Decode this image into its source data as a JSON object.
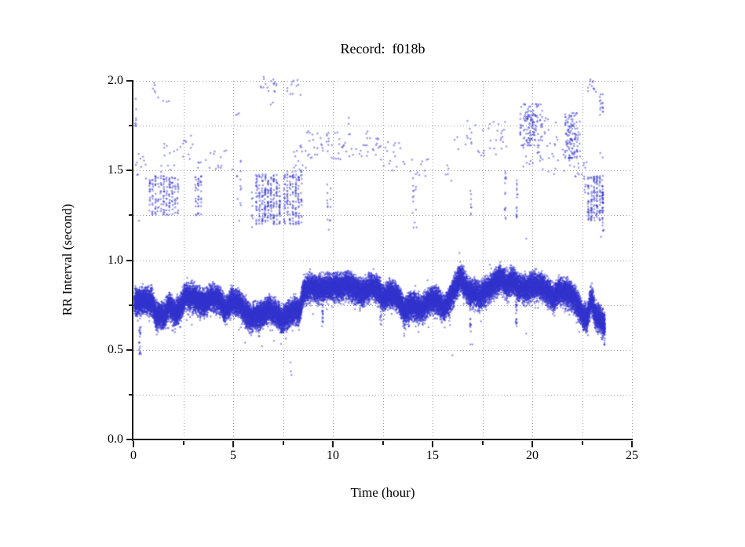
{
  "figure": {
    "record_id": "f018b",
    "background": "#ffffff"
  },
  "chart_data": {
    "type": "scatter",
    "title": "Record:  f018b",
    "xlabel": "Time (hour)",
    "ylabel": "RR Interval (second)",
    "xlim": [
      0,
      25
    ],
    "ylim": [
      0.0,
      2.0
    ],
    "x_ticks": {
      "major": [
        {
          "v": 0,
          "label": "0"
        },
        {
          "v": 5,
          "label": "5"
        },
        {
          "v": 10,
          "label": "10"
        },
        {
          "v": 15,
          "label": "15"
        },
        {
          "v": 20,
          "label": "20"
        },
        {
          "v": 25,
          "label": "25"
        }
      ],
      "minor": [
        2.5,
        7.5,
        12.5,
        17.5,
        22.5
      ]
    },
    "y_ticks": {
      "major": [
        {
          "v": 0.0,
          "label": "0.0"
        },
        {
          "v": 0.5,
          "label": "0.5"
        },
        {
          "v": 1.0,
          "label": "1.0"
        },
        {
          "v": 1.5,
          "label": "1.5"
        },
        {
          "v": 2.0,
          "label": "2.0"
        }
      ],
      "minor": [
        0.25,
        0.75,
        1.25,
        1.75
      ]
    },
    "grid": {
      "style": "dotted",
      "color": "#9e9e9e",
      "x_step": 2.5,
      "y_step": 0.25,
      "on": true
    },
    "point": {
      "shape": "open-circle",
      "color": "#3232cd",
      "radius_px": 0.85
    },
    "legend": null,
    "description": "24-hour RR-interval tachogram: a dense normal-beat band near 0.6-1.0 s and a sparse upper band of long intervals between 1.2 and 2.0 s.",
    "seed": 1337,
    "main_band": {
      "t_start": 0.05,
      "t_end": 23.65,
      "points_per_hour": 1400,
      "jitter_sd": 0.034,
      "mean_profile": [
        [
          0.05,
          0.77
        ],
        [
          0.5,
          0.78
        ],
        [
          0.95,
          0.77
        ],
        [
          1.1,
          0.7
        ],
        [
          1.55,
          0.69
        ],
        [
          1.8,
          0.75
        ],
        [
          2.05,
          0.71
        ],
        [
          2.35,
          0.73
        ],
        [
          2.6,
          0.8
        ],
        [
          3.1,
          0.79
        ],
        [
          3.5,
          0.76
        ],
        [
          3.9,
          0.79
        ],
        [
          4.3,
          0.78
        ],
        [
          4.6,
          0.72
        ],
        [
          4.9,
          0.77
        ],
        [
          5.3,
          0.76
        ],
        [
          5.6,
          0.71
        ],
        [
          5.9,
          0.68
        ],
        [
          6.2,
          0.69
        ],
        [
          6.5,
          0.7
        ],
        [
          6.8,
          0.73
        ],
        [
          7.1,
          0.71
        ],
        [
          7.45,
          0.67
        ],
        [
          7.8,
          0.7
        ],
        [
          8.1,
          0.72
        ],
        [
          8.35,
          0.71
        ],
        [
          8.5,
          0.82
        ],
        [
          8.8,
          0.85
        ],
        [
          9.3,
          0.84
        ],
        [
          9.7,
          0.85
        ],
        [
          10.2,
          0.85
        ],
        [
          10.7,
          0.86
        ],
        [
          11.1,
          0.84
        ],
        [
          11.5,
          0.82
        ],
        [
          11.9,
          0.85
        ],
        [
          12.2,
          0.85
        ],
        [
          12.5,
          0.79
        ],
        [
          12.8,
          0.81
        ],
        [
          13.2,
          0.8
        ],
        [
          13.6,
          0.72
        ],
        [
          13.9,
          0.75
        ],
        [
          14.2,
          0.74
        ],
        [
          14.5,
          0.73
        ],
        [
          14.8,
          0.77
        ],
        [
          15.2,
          0.78
        ],
        [
          15.6,
          0.73
        ],
        [
          15.9,
          0.79
        ],
        [
          16.2,
          0.86
        ],
        [
          16.4,
          0.91
        ],
        [
          16.6,
          0.86
        ],
        [
          16.8,
          0.83
        ],
        [
          17.0,
          0.82
        ],
        [
          17.4,
          0.8
        ],
        [
          17.8,
          0.84
        ],
        [
          18.1,
          0.87
        ],
        [
          18.45,
          0.9
        ],
        [
          18.7,
          0.86
        ],
        [
          19.0,
          0.89
        ],
        [
          19.3,
          0.85
        ],
        [
          19.7,
          0.84
        ],
        [
          20.1,
          0.86
        ],
        [
          20.5,
          0.85
        ],
        [
          20.8,
          0.82
        ],
        [
          21.1,
          0.79
        ],
        [
          21.3,
          0.83
        ],
        [
          21.7,
          0.82
        ],
        [
          22.0,
          0.8
        ],
        [
          22.3,
          0.75
        ],
        [
          22.55,
          0.69
        ],
        [
          22.75,
          0.67
        ],
        [
          22.9,
          0.76
        ],
        [
          23.0,
          0.78
        ],
        [
          23.15,
          0.7
        ],
        [
          23.3,
          0.68
        ],
        [
          23.5,
          0.66
        ],
        [
          23.65,
          0.63
        ]
      ]
    },
    "dip_streaks": [
      {
        "t": 0.32,
        "rr": [
          0.47,
          0.63
        ],
        "n": 22
      },
      {
        "t": 1.15,
        "rr": [
          0.6,
          0.7
        ],
        "n": 12
      },
      {
        "t": 2.2,
        "rr": [
          0.63,
          0.71
        ],
        "n": 10
      },
      {
        "t": 3.55,
        "rr": [
          0.68,
          0.76
        ],
        "n": 8
      },
      {
        "t": 4.55,
        "rr": [
          0.66,
          0.74
        ],
        "n": 10
      },
      {
        "t": 5.55,
        "rr": [
          0.64,
          0.72
        ],
        "n": 8
      },
      {
        "t": 6.2,
        "rr": [
          0.6,
          0.7
        ],
        "n": 12
      },
      {
        "t": 7.5,
        "rr": [
          0.6,
          0.68
        ],
        "n": 12
      },
      {
        "t": 9.5,
        "rr": [
          0.63,
          0.84
        ],
        "n": 26
      },
      {
        "t": 11.45,
        "rr": [
          0.74,
          0.81
        ],
        "n": 8
      },
      {
        "t": 12.4,
        "rr": [
          0.63,
          0.8
        ],
        "n": 20
      },
      {
        "t": 13.6,
        "rr": [
          0.57,
          0.74
        ],
        "n": 22
      },
      {
        "t": 14.05,
        "rr": [
          0.66,
          0.74
        ],
        "n": 9
      },
      {
        "t": 15.55,
        "rr": [
          0.66,
          0.73
        ],
        "n": 8
      },
      {
        "t": 16.9,
        "rr": [
          0.6,
          0.82
        ],
        "n": 22
      },
      {
        "t": 19.2,
        "rr": [
          0.61,
          0.84
        ],
        "n": 26
      },
      {
        "t": 21.05,
        "rr": [
          0.68,
          0.8
        ],
        "n": 14
      },
      {
        "t": 22.6,
        "rr": [
          0.62,
          0.68
        ],
        "n": 10
      },
      {
        "t": 23.55,
        "rr": [
          0.58,
          0.66
        ],
        "n": 10
      }
    ],
    "upper_clusters": [
      {
        "t": [
          0.05,
          0.18
        ],
        "rr": [
          1.74,
          1.9
        ],
        "n": 8,
        "style": "columns"
      },
      {
        "t": [
          0.1,
          0.7
        ],
        "rr": [
          1.45,
          1.62
        ],
        "n": 11,
        "style": "scatter"
      },
      {
        "t": [
          0.8,
          1.1
        ],
        "rr": [
          1.93,
          1.99
        ],
        "n": 5,
        "style": "scatter"
      },
      {
        "t": [
          1.2,
          1.8
        ],
        "rr": [
          1.88,
          1.95
        ],
        "n": 4,
        "style": "scatter"
      },
      {
        "t": [
          0.75,
          2.3
        ],
        "rr": [
          1.25,
          1.47
        ],
        "n": 180,
        "style": "columns"
      },
      {
        "t": [
          1.35,
          2.45
        ],
        "rr": [
          1.49,
          1.66
        ],
        "n": 13,
        "style": "scatter"
      },
      {
        "t": [
          2.45,
          3.05
        ],
        "rr": [
          1.54,
          1.7
        ],
        "n": 10,
        "style": "scatter"
      },
      {
        "t": [
          3.05,
          3.45
        ],
        "rr": [
          1.25,
          1.48
        ],
        "n": 45,
        "style": "columns"
      },
      {
        "t": [
          3.2,
          3.4
        ],
        "rr": [
          1.5,
          1.56
        ],
        "n": 4,
        "style": "scatter"
      },
      {
        "t": [
          3.5,
          5.0
        ],
        "rr": [
          1.5,
          1.63
        ],
        "n": 14,
        "style": "scatter"
      },
      {
        "t": [
          5.15,
          5.45
        ],
        "rr": [
          1.28,
          1.56
        ],
        "n": 12,
        "style": "columns"
      },
      {
        "t": [
          5.1,
          5.3
        ],
        "rr": [
          1.8,
          1.87
        ],
        "n": 3,
        "style": "scatter"
      },
      {
        "t": [
          5.85,
          6.05
        ],
        "rr": [
          1.18,
          1.4
        ],
        "n": 8,
        "style": "columns"
      },
      {
        "t": [
          6.1,
          7.4
        ],
        "rr": [
          1.2,
          1.48
        ],
        "n": 260,
        "style": "columns"
      },
      {
        "t": [
          6.35,
          7.2
        ],
        "rr": [
          1.93,
          2.03
        ],
        "n": 17,
        "style": "scatter"
      },
      {
        "t": [
          6.85,
          7.0
        ],
        "rr": [
          1.86,
          1.9
        ],
        "n": 2,
        "style": "scatter"
      },
      {
        "t": [
          7.5,
          8.5
        ],
        "rr": [
          1.2,
          1.5
        ],
        "n": 170,
        "style": "columns"
      },
      {
        "t": [
          7.7,
          8.4
        ],
        "rr": [
          1.92,
          2.02
        ],
        "n": 11,
        "style": "scatter"
      },
      {
        "t": [
          7.95,
          8.7
        ],
        "rr": [
          1.5,
          1.64
        ],
        "n": 14,
        "style": "scatter"
      },
      {
        "t": [
          8.7,
          12.5
        ],
        "rr": [
          1.56,
          1.72
        ],
        "n": 75,
        "style": "scatter"
      },
      {
        "t": [
          9.65,
          9.95
        ],
        "rr": [
          1.22,
          1.45
        ],
        "n": 12,
        "style": "columns"
      },
      {
        "t": [
          10.7,
          10.9
        ],
        "rr": [
          1.76,
          1.8
        ],
        "n": 2,
        "style": "scatter"
      },
      {
        "t": [
          12.5,
          13.6
        ],
        "rr": [
          1.5,
          1.66
        ],
        "n": 16,
        "style": "scatter"
      },
      {
        "t": [
          13.6,
          14.9
        ],
        "rr": [
          1.44,
          1.6
        ],
        "n": 12,
        "style": "scatter"
      },
      {
        "t": [
          13.95,
          14.25
        ],
        "rr": [
          1.24,
          1.42
        ],
        "n": 10,
        "style": "columns"
      },
      {
        "t": [
          14.0,
          14.2
        ],
        "rr": [
          1.18,
          1.23
        ],
        "n": 2,
        "style": "scatter"
      },
      {
        "t": [
          15.5,
          15.95
        ],
        "rr": [
          1.44,
          1.54
        ],
        "n": 5,
        "style": "scatter"
      },
      {
        "t": [
          16.1,
          17.3
        ],
        "rr": [
          1.6,
          1.78
        ],
        "n": 14,
        "style": "scatter"
      },
      {
        "t": [
          16.85,
          17.0
        ],
        "rr": [
          1.25,
          1.45
        ],
        "n": 8,
        "style": "columns"
      },
      {
        "t": [
          17.3,
          18.8
        ],
        "rr": [
          1.58,
          1.78
        ],
        "n": 26,
        "style": "scatter"
      },
      {
        "t": [
          18.55,
          18.75
        ],
        "rr": [
          1.22,
          1.5
        ],
        "n": 15,
        "style": "columns"
      },
      {
        "t": [
          19.15,
          19.3
        ],
        "rr": [
          1.22,
          1.45
        ],
        "n": 16,
        "style": "columns"
      },
      {
        "t": [
          19.4,
          20.5
        ],
        "rr": [
          1.64,
          1.87
        ],
        "n": 150,
        "style": "blob"
      },
      {
        "t": [
          19.5,
          20.5
        ],
        "rr": [
          1.5,
          1.63
        ],
        "n": 14,
        "style": "scatter"
      },
      {
        "t": [
          20.5,
          21.6
        ],
        "rr": [
          1.48,
          1.7
        ],
        "n": 18,
        "style": "scatter"
      },
      {
        "t": [
          20.6,
          21.2
        ],
        "rr": [
          1.7,
          1.85
        ],
        "n": 7,
        "style": "scatter"
      },
      {
        "t": [
          21.65,
          22.4
        ],
        "rr": [
          1.57,
          1.82
        ],
        "n": 130,
        "style": "blob"
      },
      {
        "t": [
          21.8,
          22.5
        ],
        "rr": [
          1.45,
          1.56
        ],
        "n": 9,
        "style": "scatter"
      },
      {
        "t": [
          22.4,
          22.8
        ],
        "rr": [
          1.33,
          1.56
        ],
        "n": 12,
        "style": "scatter"
      },
      {
        "t": [
          22.75,
          23.6
        ],
        "rr": [
          1.22,
          1.47
        ],
        "n": 170,
        "style": "columns"
      },
      {
        "t": [
          23.45,
          23.62
        ],
        "rr": [
          1.16,
          1.42
        ],
        "n": 18,
        "style": "columns"
      },
      {
        "t": [
          22.8,
          23.2
        ],
        "rr": [
          1.93,
          2.01
        ],
        "n": 12,
        "style": "scatter"
      },
      {
        "t": [
          23.35,
          23.6
        ],
        "rr": [
          1.79,
          1.93
        ],
        "n": 16,
        "style": "columns"
      },
      {
        "t": [
          23.4,
          23.55
        ],
        "rr": [
          1.55,
          1.6
        ],
        "n": 2,
        "style": "scatter"
      },
      {
        "t": [
          16.2,
          16.6
        ],
        "rr": [
          0.9,
          0.97
        ],
        "n": 20,
        "style": "scatter"
      },
      {
        "t": [
          18.2,
          19.1
        ],
        "rr": [
          0.9,
          0.96
        ],
        "n": 25,
        "style": "scatter"
      },
      {
        "t": [
          19.6,
          20.6
        ],
        "rr": [
          0.88,
          0.94
        ],
        "n": 15,
        "style": "scatter"
      }
    ],
    "low_outliers": [
      [
        0.3,
        0.54
      ],
      [
        1.17,
        0.585
      ],
      [
        5.6,
        0.54
      ],
      [
        6.45,
        0.52
      ],
      [
        7.05,
        0.55
      ],
      [
        7.88,
        0.43
      ],
      [
        7.9,
        0.38
      ],
      [
        7.93,
        0.36
      ],
      [
        14.3,
        0.6
      ],
      [
        16.0,
        0.47
      ],
      [
        16.9,
        0.53
      ],
      [
        17.0,
        0.53
      ],
      [
        19.7,
        0.59
      ]
    ],
    "mid_outliers": [
      [
        0.28,
        1.22
      ],
      [
        5.3,
        1.22
      ],
      [
        9.8,
        1.17
      ],
      [
        14.1,
        1.21
      ],
      [
        16.35,
        1.04
      ],
      [
        18.4,
        0.99
      ],
      [
        19.7,
        1.12
      ],
      [
        23.45,
        1.13
      ]
    ]
  }
}
